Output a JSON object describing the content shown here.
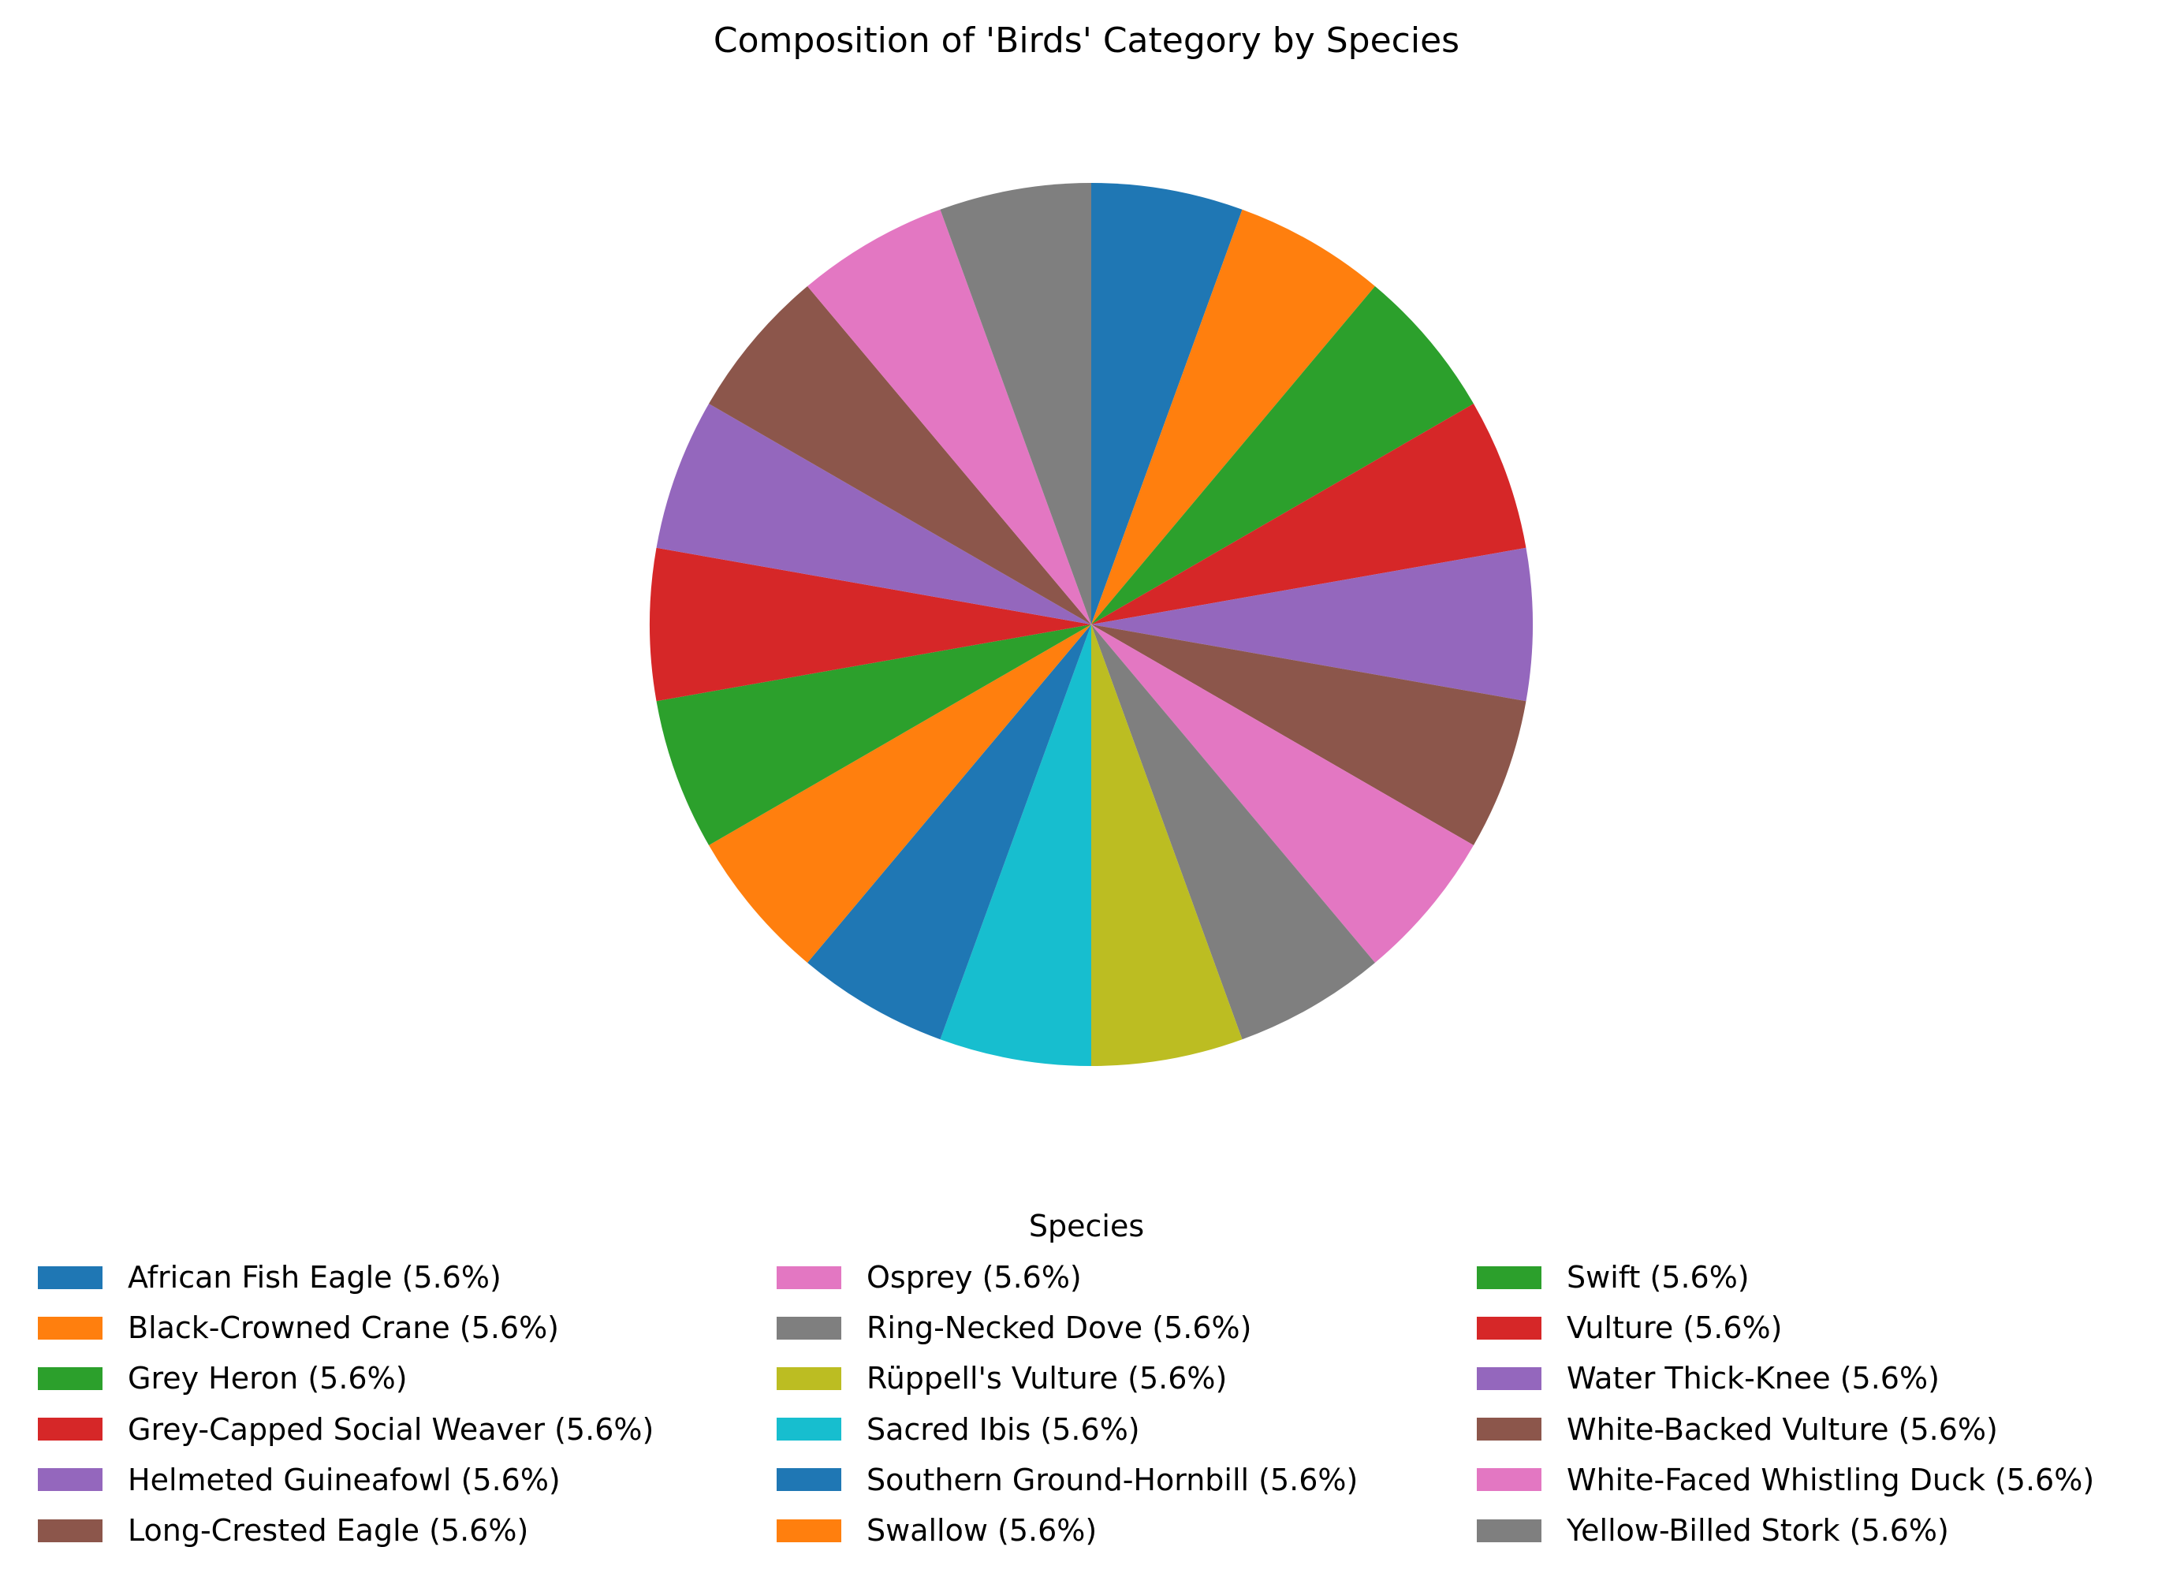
{
  "chart_data": {
    "type": "pie",
    "title": "Composition of 'Birds' Category by Species",
    "legend_title": "Species",
    "legend_position": "bottom",
    "start_angle_degrees": 90,
    "direction": "clockwise",
    "slices": [
      {
        "label": "African Fish Eagle (5.6%)",
        "value": 5.6,
        "color": "#1f77b4"
      },
      {
        "label": "Black-Crowned Crane (5.6%)",
        "value": 5.6,
        "color": "#ff7f0e"
      },
      {
        "label": "Grey Heron (5.6%)",
        "value": 5.6,
        "color": "#2ca02c"
      },
      {
        "label": "Grey-Capped Social Weaver (5.6%)",
        "value": 5.6,
        "color": "#d62728"
      },
      {
        "label": "Helmeted Guineafowl (5.6%)",
        "value": 5.6,
        "color": "#9467bd"
      },
      {
        "label": "Long-Crested Eagle (5.6%)",
        "value": 5.6,
        "color": "#8c564b"
      },
      {
        "label": "Osprey (5.6%)",
        "value": 5.6,
        "color": "#e377c2"
      },
      {
        "label": "Ring-Necked Dove (5.6%)",
        "value": 5.6,
        "color": "#7f7f7f"
      },
      {
        "label": "Rüppell's Vulture (5.6%)",
        "value": 5.6,
        "color": "#bcbd22"
      },
      {
        "label": "Sacred Ibis (5.6%)",
        "value": 5.6,
        "color": "#17becf"
      },
      {
        "label": "Southern Ground-Hornbill (5.6%)",
        "value": 5.6,
        "color": "#1f77b4"
      },
      {
        "label": "Swallow (5.6%)",
        "value": 5.6,
        "color": "#ff7f0e"
      },
      {
        "label": "Swift (5.6%)",
        "value": 5.6,
        "color": "#2ca02c"
      },
      {
        "label": "Vulture (5.6%)",
        "value": 5.6,
        "color": "#d62728"
      },
      {
        "label": "Water Thick-Knee (5.6%)",
        "value": 5.6,
        "color": "#9467bd"
      },
      {
        "label": "White-Backed Vulture (5.6%)",
        "value": 5.6,
        "color": "#8c564b"
      },
      {
        "label": "White-Faced Whistling Duck (5.6%)",
        "value": 5.6,
        "color": "#e377c2"
      },
      {
        "label": "Yellow-Billed Stork (5.6%)",
        "value": 5.6,
        "color": "#7f7f7f"
      }
    ]
  }
}
